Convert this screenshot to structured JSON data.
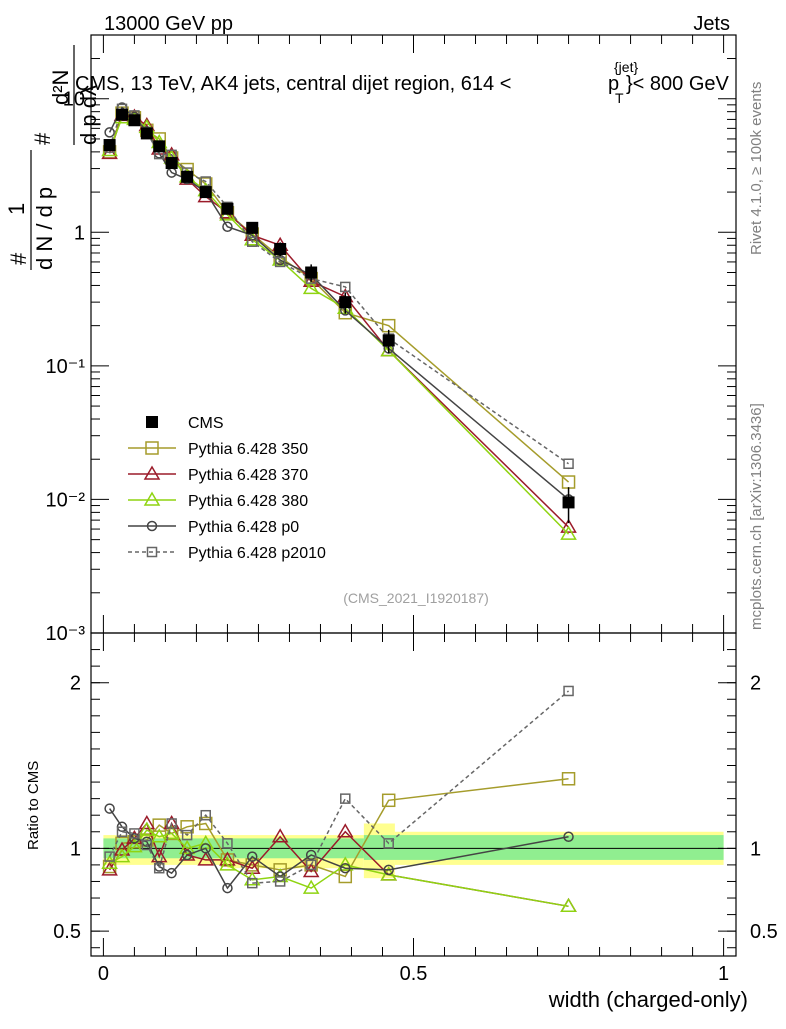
{
  "header": {
    "left": "13000 GeV pp",
    "right": "Jets"
  },
  "side_labels": {
    "rivet": "Rivet 4.1.0, ≥ 100k events",
    "mcplots": "mcplots.cern.ch [arXiv:1306.3436]"
  },
  "chart_data": [
    {
      "type": "line",
      "title": "CMS, 13 TeV, AK4 jets, central dijet region, 614 < p_T^{jet} < 800 GeV",
      "title_parts": {
        "pre": "CMS, 13 TeV, AK4 jets, central dijet region, 614 <",
        "p": "p",
        "sub": "T",
        "sup": "{jet}",
        "post": "}< 800 GeV"
      },
      "ylabel_parts": {
        "frac_left": "1",
        "denom_left": "d N / d p",
        "num_right": "d²N",
        "denom_right": "d p   dλ",
        "sub": "T",
        "hash": "#"
      },
      "yscale": "log",
      "ylim": [
        0.001,
        30
      ],
      "xlim": [
        -0.02,
        1.02
      ],
      "yticks": [
        {
          "v": 0.001,
          "label": "10⁻³"
        },
        {
          "v": 0.01,
          "label": "10⁻²"
        },
        {
          "v": 0.1,
          "label": "10⁻¹"
        },
        {
          "v": 1,
          "label": "1"
        },
        {
          "v": 10,
          "label": "10"
        }
      ],
      "watermark": "(CMS_2021_I1920187)",
      "legend_position": "lower-left",
      "series": [
        {
          "name": "CMS",
          "color": "#000000",
          "marker": "square-filled",
          "dash": "none",
          "x": [
            0.01,
            0.03,
            0.05,
            0.07,
            0.09,
            0.11,
            0.135,
            0.165,
            0.2,
            0.24,
            0.285,
            0.335,
            0.39,
            0.46,
            0.75
          ],
          "y": [
            4.5,
            7.6,
            6.9,
            5.5,
            4.4,
            3.3,
            2.6,
            2.0,
            1.5,
            1.08,
            0.75,
            0.5,
            0.3,
            0.155,
            0.0095
          ],
          "err": [
            0.05,
            0.04,
            0.04,
            0.05,
            0.05,
            0.06,
            0.06,
            0.07,
            0.08,
            0.1,
            0.12,
            0.15,
            0.18,
            0.2,
            0.3
          ]
        },
        {
          "name": "Pythia 6.428 350",
          "color": "#a59c2b",
          "marker": "square-open",
          "dash": "none",
          "x": [
            0.01,
            0.03,
            0.05,
            0.07,
            0.09,
            0.11,
            0.135,
            0.165,
            0.2,
            0.24,
            0.285,
            0.335,
            0.39,
            0.46,
            0.75
          ],
          "y": [
            4.0,
            7.8,
            7.2,
            5.8,
            5.0,
            3.6,
            2.95,
            2.3,
            1.4,
            0.97,
            0.65,
            0.45,
            0.25,
            0.2,
            0.0135
          ]
        },
        {
          "name": "Pythia 6.428 370",
          "color": "#9b1b2a",
          "marker": "triangle-open",
          "dash": "none",
          "x": [
            0.01,
            0.03,
            0.05,
            0.07,
            0.09,
            0.11,
            0.135,
            0.165,
            0.2,
            0.24,
            0.285,
            0.335,
            0.39,
            0.46,
            0.75
          ],
          "y": [
            3.9,
            7.5,
            7.3,
            6.3,
            4.2,
            3.8,
            2.5,
            1.85,
            1.4,
            0.95,
            0.8,
            0.43,
            0.33,
            0.13,
            0.0062
          ]
        },
        {
          "name": "Pythia 6.428 380",
          "color": "#8fd411",
          "marker": "triangle-open",
          "dash": "none",
          "x": [
            0.01,
            0.03,
            0.05,
            0.07,
            0.09,
            0.11,
            0.135,
            0.165,
            0.2,
            0.24,
            0.285,
            0.335,
            0.39,
            0.46,
            0.75
          ],
          "y": [
            4.1,
            7.2,
            7.0,
            6.1,
            4.7,
            3.6,
            2.6,
            2.05,
            1.35,
            0.88,
            0.62,
            0.38,
            0.27,
            0.13,
            0.0055
          ]
        },
        {
          "name": "Pythia 6.428 p0",
          "color": "#444444",
          "marker": "circle-open",
          "dash": "none",
          "x": [
            0.01,
            0.03,
            0.05,
            0.07,
            0.09,
            0.11,
            0.135,
            0.165,
            0.2,
            0.24,
            0.285,
            0.335,
            0.39,
            0.46,
            0.75
          ],
          "y": [
            5.6,
            8.6,
            7.3,
            5.7,
            3.9,
            2.8,
            2.5,
            2.0,
            1.1,
            0.95,
            0.62,
            0.48,
            0.26,
            0.135,
            0.01
          ]
        },
        {
          "name": "Pythia 6.428 p2010",
          "color": "#666666",
          "marker": "square-open-small",
          "dash": "4,3",
          "x": [
            0.01,
            0.03,
            0.05,
            0.07,
            0.09,
            0.11,
            0.135,
            0.165,
            0.2,
            0.24,
            0.285,
            0.335,
            0.39,
            0.46,
            0.75
          ],
          "y": [
            4.3,
            8.4,
            7.5,
            5.6,
            3.85,
            3.8,
            2.8,
            2.4,
            1.55,
            0.85,
            0.6,
            0.45,
            0.39,
            0.16,
            0.0185
          ]
        }
      ]
    },
    {
      "type": "line",
      "title": "",
      "ylabel": "Ratio to CMS",
      "xlabel": "width (charged-only)",
      "ylim": [
        0.35,
        2.3
      ],
      "xlim": [
        -0.02,
        1.02
      ],
      "xticks": [
        {
          "v": 0,
          "label": "0"
        },
        {
          "v": 0.5,
          "label": "0.5"
        },
        {
          "v": 1,
          "label": "1"
        }
      ],
      "yticks": [
        {
          "v": 0.5,
          "label": "0.5"
        },
        {
          "v": 1,
          "label": "1"
        },
        {
          "v": 2,
          "label": "2"
        }
      ],
      "bands": [
        {
          "x0": 0.0,
          "x1": 0.42,
          "lo": 0.94,
          "hi": 1.06,
          "color": "#90ee90"
        },
        {
          "x0": 0.42,
          "x1": 1.0,
          "lo": 0.93,
          "hi": 1.08,
          "color": "#90ee90"
        }
      ],
      "bands_outer": [
        {
          "x0": 0.0,
          "x1": 0.2,
          "lo": 0.9,
          "hi": 1.08,
          "color": "#ffff90"
        },
        {
          "x0": 0.2,
          "x1": 0.42,
          "lo": 0.88,
          "hi": 1.08,
          "color": "#ffff90"
        },
        {
          "x0": 0.42,
          "x1": 0.47,
          "lo": 0.82,
          "hi": 1.15,
          "color": "#ffff90"
        },
        {
          "x0": 0.47,
          "x1": 1.0,
          "lo": 0.9,
          "hi": 1.1,
          "color": "#ffff90"
        }
      ],
      "series": [
        {
          "name": "Pythia 6.428 350",
          "color": "#a59c2b",
          "marker": "square-open",
          "dash": "none",
          "x": [
            0.01,
            0.03,
            0.05,
            0.07,
            0.09,
            0.11,
            0.135,
            0.165,
            0.2,
            0.24,
            0.285,
            0.335,
            0.39,
            0.46,
            0.75
          ],
          "y": [
            0.89,
            1.03,
            1.04,
            1.05,
            1.14,
            1.09,
            1.13,
            1.15,
            0.93,
            0.9,
            0.87,
            0.9,
            0.83,
            1.29,
            1.42
          ]
        },
        {
          "name": "Pythia 6.428 370",
          "color": "#9b1b2a",
          "marker": "triangle-open",
          "dash": "none",
          "x": [
            0.01,
            0.03,
            0.05,
            0.07,
            0.09,
            0.11,
            0.135,
            0.165,
            0.2,
            0.24,
            0.285,
            0.335,
            0.39,
            0.46,
            0.75
          ],
          "y": [
            0.87,
            0.99,
            1.06,
            1.15,
            0.95,
            1.15,
            0.96,
            0.93,
            0.93,
            0.88,
            1.07,
            0.86,
            1.1,
            0.84,
            0.65
          ]
        },
        {
          "name": "Pythia 6.428 380",
          "color": "#8fd411",
          "marker": "triangle-open",
          "dash": "none",
          "x": [
            0.01,
            0.03,
            0.05,
            0.07,
            0.09,
            0.11,
            0.135,
            0.165,
            0.2,
            0.24,
            0.285,
            0.335,
            0.39,
            0.46,
            0.75
          ],
          "y": [
            0.91,
            0.95,
            1.01,
            1.11,
            1.07,
            1.09,
            1.0,
            1.03,
            0.9,
            0.81,
            0.83,
            0.76,
            0.9,
            0.84,
            0.65
          ]
        },
        {
          "name": "Pythia 6.428 p0",
          "color": "#444444",
          "marker": "circle-open",
          "dash": "none",
          "x": [
            0.01,
            0.03,
            0.05,
            0.07,
            0.09,
            0.11,
            0.135,
            0.165,
            0.2,
            0.24,
            0.285,
            0.335,
            0.39,
            0.46,
            0.75
          ],
          "y": [
            1.24,
            1.13,
            1.06,
            1.04,
            0.89,
            0.85,
            0.96,
            1.0,
            0.76,
            0.95,
            0.83,
            0.96,
            0.88,
            0.87,
            1.07
          ]
        },
        {
          "name": "Pythia 6.428 p2010",
          "color": "#666666",
          "marker": "square-open-small",
          "dash": "4,3",
          "x": [
            0.01,
            0.03,
            0.05,
            0.07,
            0.09,
            0.11,
            0.135,
            0.165,
            0.2,
            0.24,
            0.285,
            0.335,
            0.39,
            0.46,
            0.75
          ],
          "y": [
            0.95,
            1.1,
            1.09,
            1.02,
            0.88,
            1.15,
            1.08,
            1.2,
            1.03,
            0.79,
            0.8,
            0.9,
            1.3,
            1.03,
            1.95
          ]
        }
      ]
    }
  ]
}
